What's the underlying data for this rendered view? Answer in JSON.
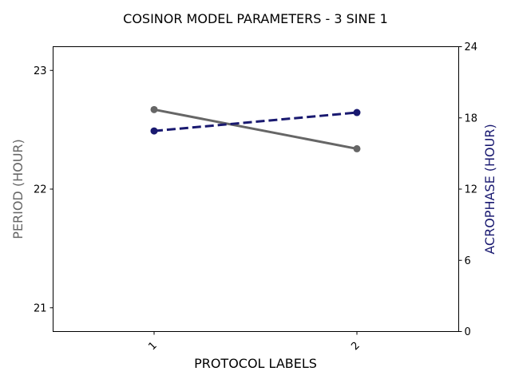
{
  "chart_data": {
    "type": "line",
    "title": "COSINOR MODEL PARAMETERS - 3 SINE 1",
    "xlabel": "PROTOCOL LABELS",
    "categories": [
      "1",
      "2"
    ],
    "y_left": {
      "label": "PERIOD (HOUR)",
      "range": [
        20.8,
        23.2
      ],
      "ticks": [
        21,
        22,
        23
      ],
      "color": "#666666"
    },
    "y_right": {
      "label": "ACROPHASE (HOUR)",
      "range": [
        0,
        24
      ],
      "ticks": [
        0,
        6,
        12,
        18,
        24
      ],
      "color": "#191970"
    },
    "series": [
      {
        "axis": "left",
        "values": [
          22.67,
          22.34
        ],
        "color": "#666666",
        "line_style": "solid",
        "marker": "circle"
      },
      {
        "axis": "right",
        "values": [
          16.9,
          18.45
        ],
        "color": "#191970",
        "line_style": "dashed",
        "marker": "circle"
      }
    ],
    "grid": false,
    "legend": "none"
  }
}
